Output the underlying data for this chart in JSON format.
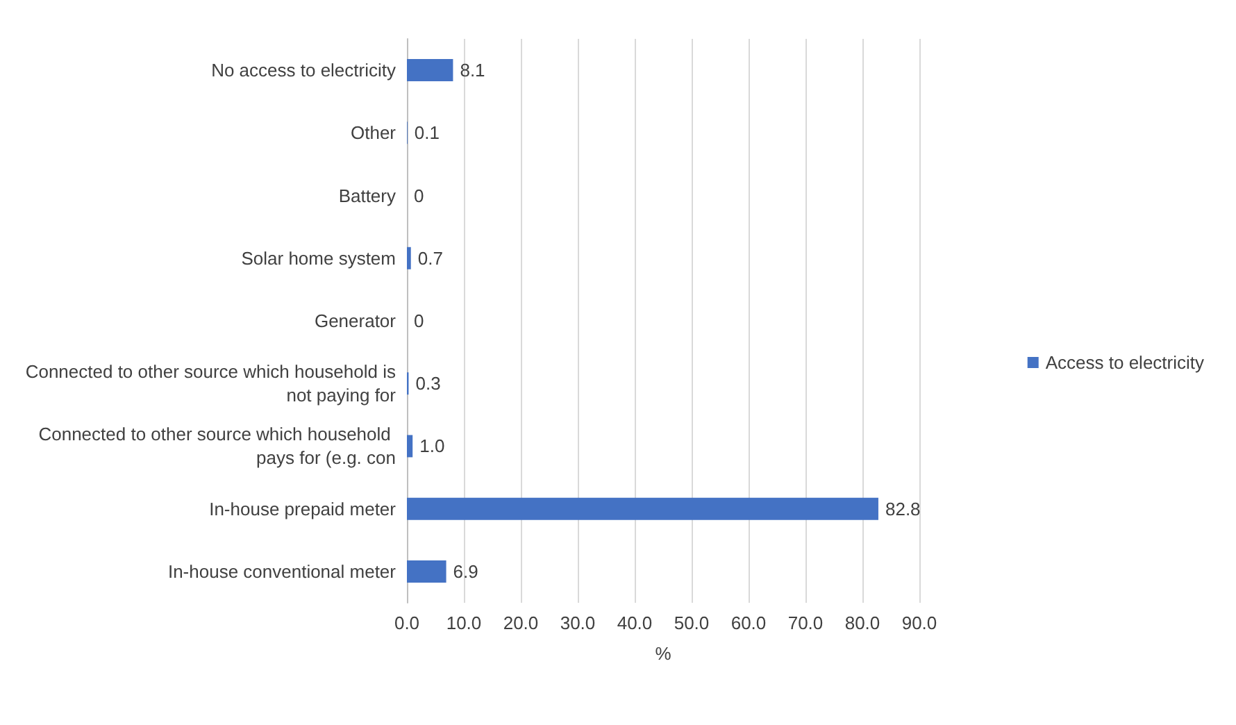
{
  "chart_data": {
    "type": "bar",
    "orientation": "horizontal",
    "xlabel": "%",
    "categories": [
      "No access to electricity",
      "Other",
      "Battery",
      "Solar home system",
      "Generator",
      "Connected to other source which household is not paying for",
      "Connected to other source which household pays for (e.g. con",
      "In-house prepaid meter",
      "In-house conventional meter"
    ],
    "series": [
      {
        "name": "Access to electricity",
        "color": "#4472c4",
        "values": [
          8.1,
          0.1,
          0,
          0.7,
          0,
          0.3,
          1.0,
          82.8,
          6.9
        ],
        "value_labels": [
          "8.1",
          "0.1",
          "0",
          "0.7",
          "0",
          "0.3",
          "1.0",
          "82.8",
          "6.9"
        ]
      }
    ],
    "xlim": [
      0,
      90
    ],
    "xticks": [
      {
        "value": 0,
        "label": "0.0"
      },
      {
        "value": 10,
        "label": "10.0"
      },
      {
        "value": 20,
        "label": "20.0"
      },
      {
        "value": 30,
        "label": "30.0"
      },
      {
        "value": 40,
        "label": "40.0"
      },
      {
        "value": 50,
        "label": "50.0"
      },
      {
        "value": 60,
        "label": "60.0"
      },
      {
        "value": 70,
        "label": "70.0"
      },
      {
        "value": 80,
        "label": "80.0"
      },
      {
        "value": 90,
        "label": "90.0"
      }
    ],
    "grid": "x",
    "legend": "right"
  }
}
